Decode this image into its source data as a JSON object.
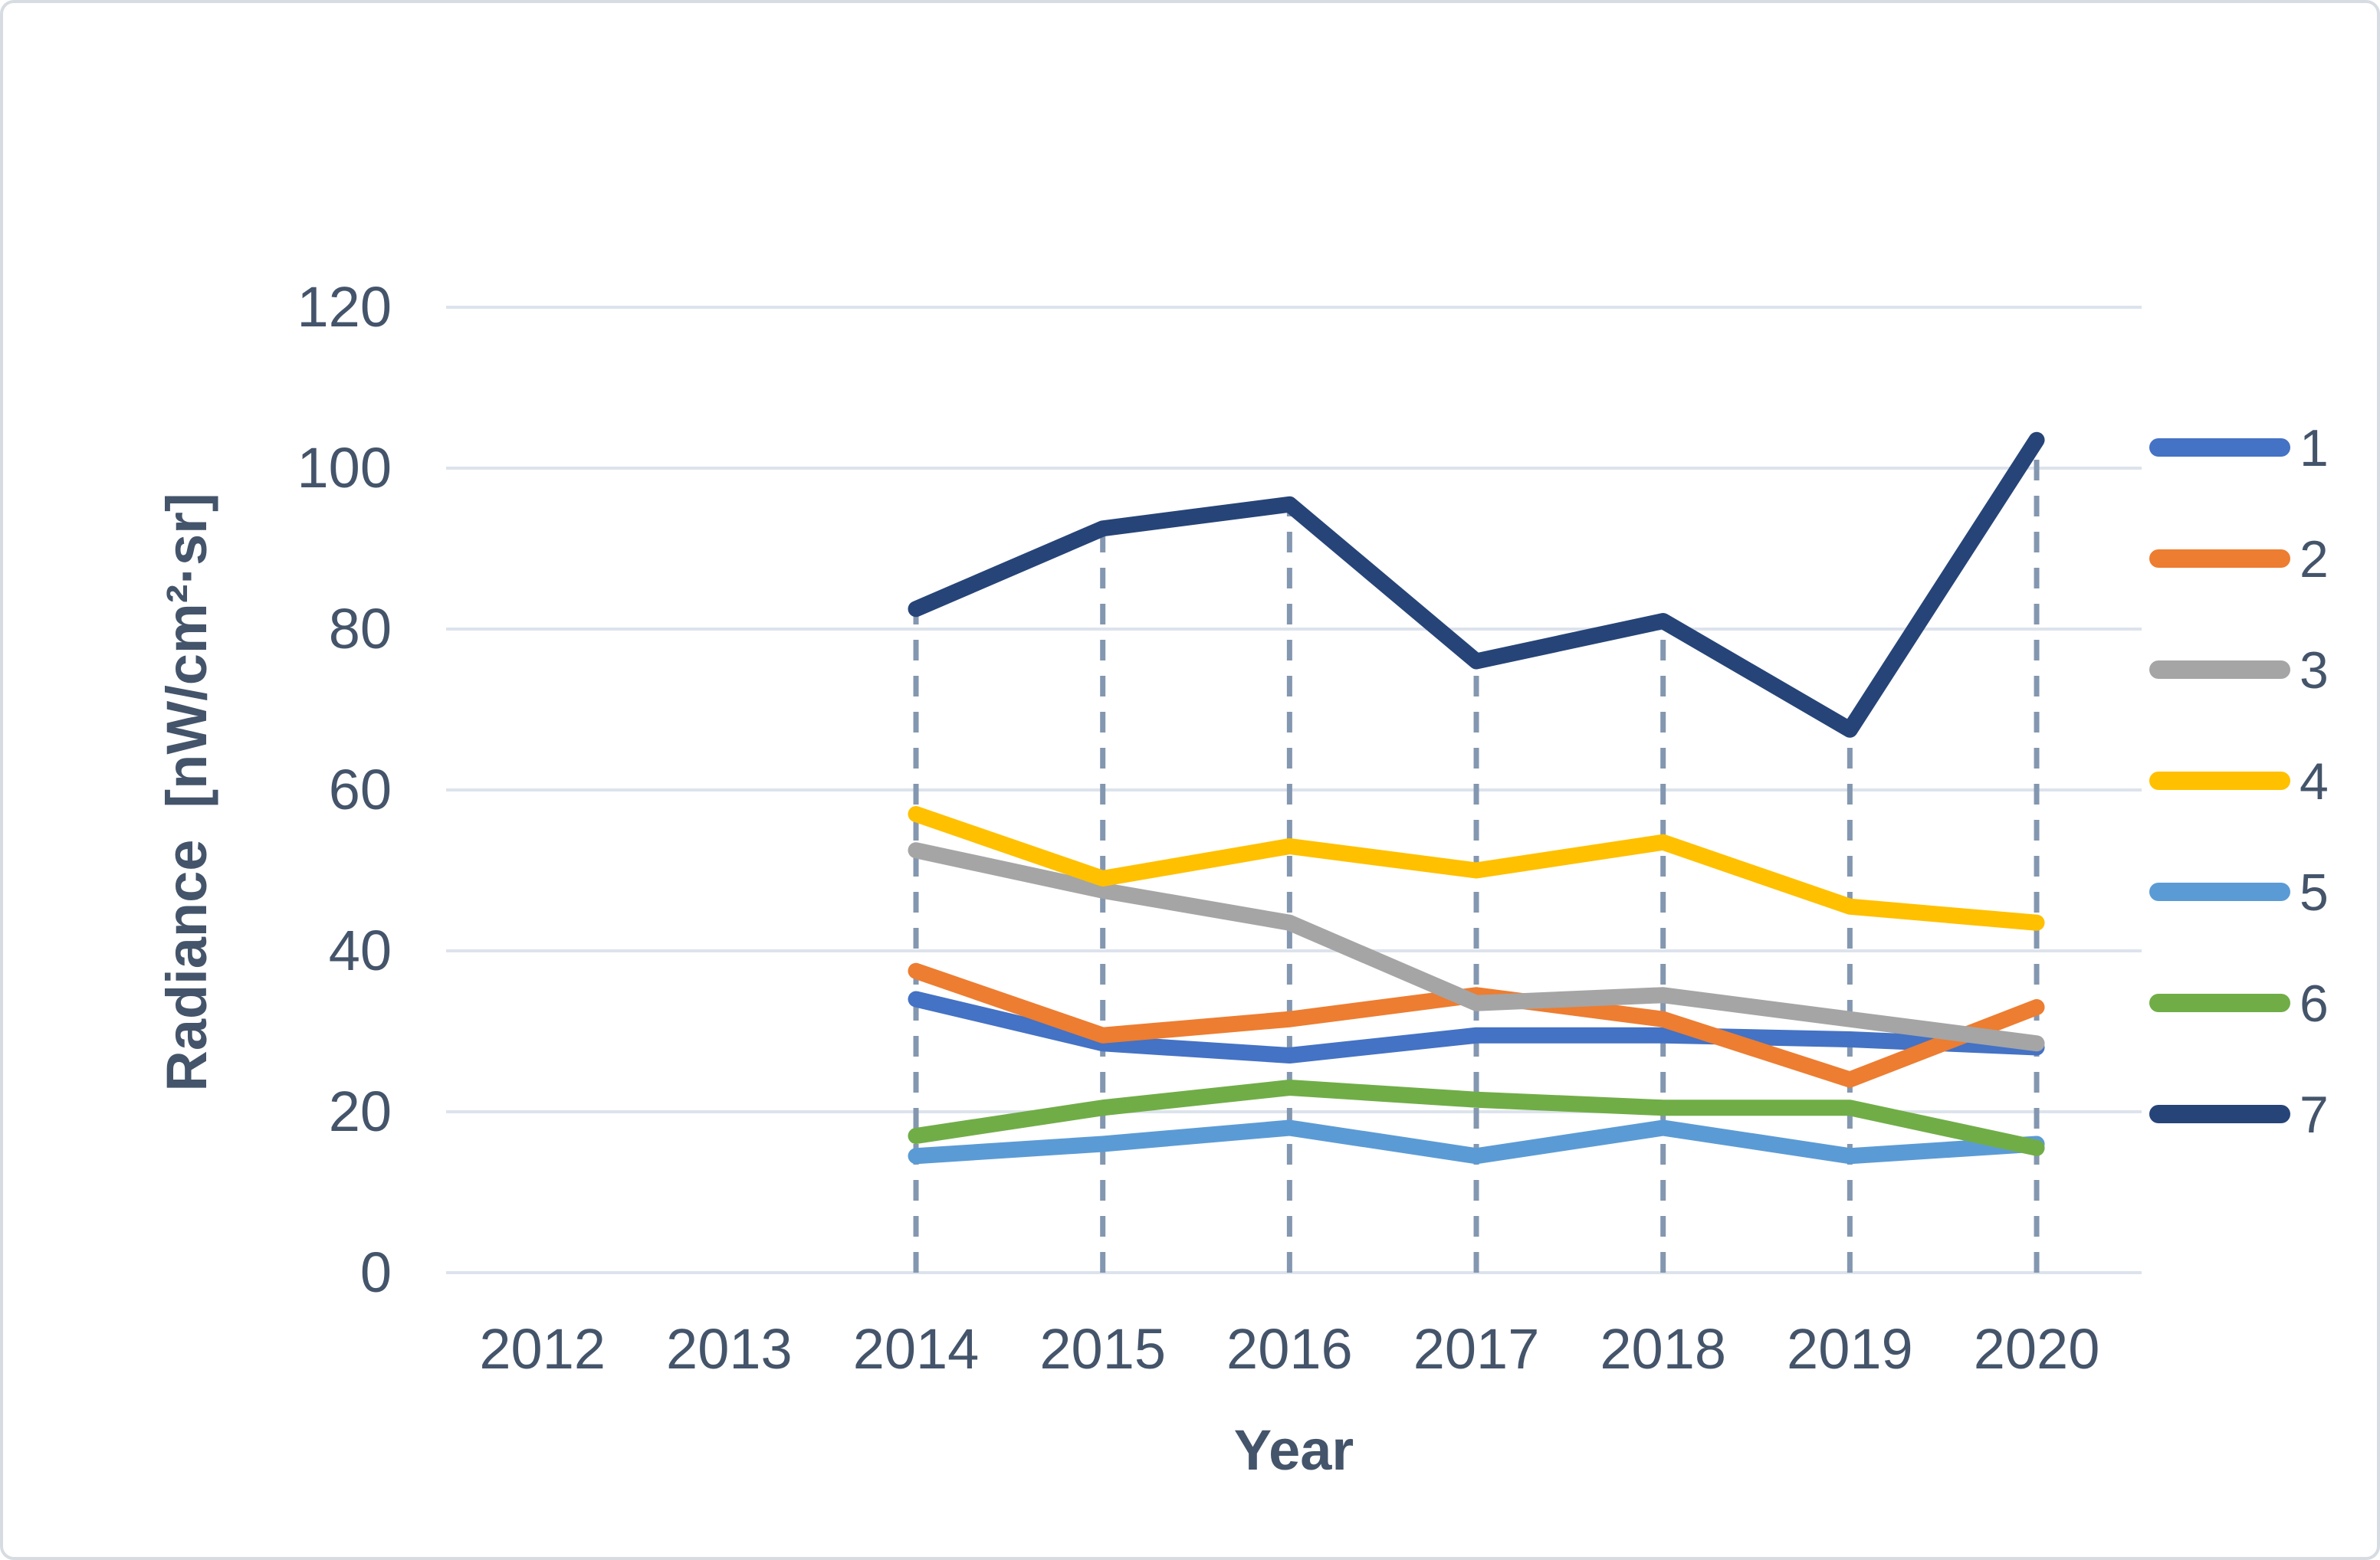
{
  "chart_data": {
    "type": "line",
    "title": "",
    "xlabel": "Year",
    "ylabel": "Radiance  [nW/cm²·sr]",
    "categories": [
      "2012",
      "2013",
      "2014",
      "2015",
      "2016",
      "2017",
      "2018",
      "2019",
      "2020"
    ],
    "data_years": [
      2014,
      2015,
      2016,
      2017,
      2018,
      2019,
      2020
    ],
    "yticks": [
      0,
      20,
      40,
      60,
      80,
      100,
      120
    ],
    "ylim": [
      0,
      120
    ],
    "grid": true,
    "legend_position": "right",
    "guide_lines": "vertical dashed lines from x-axis up to series 7 at each data year",
    "series": [
      {
        "name": "1",
        "color": "#4472C4",
        "values": [
          34,
          28.5,
          27,
          29.5,
          29.5,
          29,
          28
        ]
      },
      {
        "name": "2",
        "color": "#ED7D31",
        "values": [
          37.5,
          29.5,
          31.5,
          34.5,
          31.5,
          24,
          33
        ]
      },
      {
        "name": "3",
        "color": "#A5A5A5",
        "values": [
          52.5,
          47.5,
          43.5,
          33.5,
          34.5,
          31.5,
          28.5
        ]
      },
      {
        "name": "4",
        "color": "#FFC000",
        "values": [
          57,
          49,
          53,
          50,
          53.5,
          45.5,
          43.5
        ]
      },
      {
        "name": "5",
        "color": "#5B9BD5",
        "values": [
          14.5,
          16,
          18,
          14.5,
          18,
          14.5,
          16
        ]
      },
      {
        "name": "6",
        "color": "#70AD47",
        "values": [
          17,
          20.5,
          23,
          21.5,
          20.5,
          20.5,
          15.5
        ]
      },
      {
        "name": "7",
        "color": "#264478",
        "values": [
          82.5,
          92.5,
          95.5,
          76,
          81,
          67.5,
          103.5
        ]
      }
    ]
  },
  "colors": {
    "text": "#44546A",
    "gridline": "#DDE3EC",
    "guide_dash": "#8497B0",
    "frame_border": "#D7DBE2",
    "background": "#FFFFFF"
  }
}
